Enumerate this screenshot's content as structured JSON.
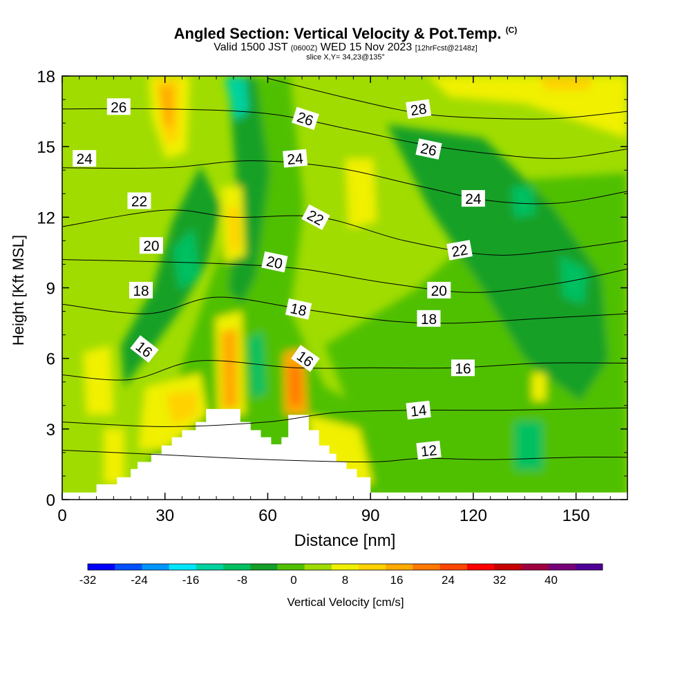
{
  "header": {
    "title": "Angled Section: Vertical Velocity & Pot.Temp.",
    "copyright": "(C)",
    "valid_prefix": "Valid 1500 JST",
    "valid_utc": "(0600Z)",
    "valid_date": "WED 15 Nov 2023",
    "forecast": "[12hrFcst@2148z]",
    "slice": "slice X,Y= 34,23@135°"
  },
  "chart_data": {
    "type": "heatmap",
    "xlabel": "Distance [nm]",
    "ylabel": "Height [Kft MSL]",
    "xlim": [
      0,
      165
    ],
    "ylim": [
      0,
      18
    ],
    "xticks": [
      0,
      30,
      60,
      90,
      120,
      150
    ],
    "yticks": [
      0,
      3,
      6,
      9,
      12,
      15,
      18
    ],
    "colorbar": {
      "label": "Vertical Velocity [cm/s]",
      "range": [
        -32,
        48
      ],
      "step": 4,
      "tick_labels": [
        "-32",
        "-24",
        "-16",
        "-8",
        "0",
        "8",
        "16",
        "24",
        "32",
        "40"
      ],
      "colors": [
        "#0000ff",
        "#0050ff",
        "#0096ff",
        "#00e6ff",
        "#00d2a0",
        "#00c060",
        "#14a028",
        "#50c000",
        "#a0dc00",
        "#f0f000",
        "#ffd200",
        "#ffaa00",
        "#ff7800",
        "#ff4600",
        "#ff0000",
        "#c80000",
        "#a00040",
        "#780078",
        "#500096"
      ]
    },
    "terrain": [
      [
        0,
        0.3
      ],
      [
        10,
        0.3
      ],
      [
        10,
        0.65
      ],
      [
        16,
        0.65
      ],
      [
        16,
        0.95
      ],
      [
        20,
        0.95
      ],
      [
        20,
        1.3
      ],
      [
        22,
        1.3
      ],
      [
        22,
        1.6
      ],
      [
        26,
        1.6
      ],
      [
        26,
        1.95
      ],
      [
        29,
        1.95
      ],
      [
        29,
        2.3
      ],
      [
        32,
        2.3
      ],
      [
        32,
        2.65
      ],
      [
        35,
        2.65
      ],
      [
        35,
        2.95
      ],
      [
        39,
        2.95
      ],
      [
        39,
        3.3
      ],
      [
        42,
        3.3
      ],
      [
        42,
        3.85
      ],
      [
        52,
        3.85
      ],
      [
        52,
        3.3
      ],
      [
        55,
        3.3
      ],
      [
        55,
        2.95
      ],
      [
        58,
        2.95
      ],
      [
        58,
        2.65
      ],
      [
        61,
        2.65
      ],
      [
        61,
        2.35
      ],
      [
        64,
        2.35
      ],
      [
        64,
        2.65
      ],
      [
        66,
        2.65
      ],
      [
        66,
        3.6
      ],
      [
        72,
        3.6
      ],
      [
        72,
        2.95
      ],
      [
        75,
        2.95
      ],
      [
        75,
        2.3
      ],
      [
        78,
        2.3
      ],
      [
        78,
        1.95
      ],
      [
        80,
        1.95
      ],
      [
        80,
        1.6
      ],
      [
        83,
        1.6
      ],
      [
        83,
        1.3
      ],
      [
        86,
        1.3
      ],
      [
        86,
        0.95
      ],
      [
        90,
        0.95
      ],
      [
        90,
        0.3
      ],
      [
        165,
        0.3
      ]
    ],
    "theta_contours": [
      {
        "value": 12,
        "points": [
          [
            0,
            2.1
          ],
          [
            30,
            1.9
          ],
          [
            60,
            1.7
          ],
          [
            90,
            1.6
          ],
          [
            105,
            1.75
          ],
          [
            125,
            1.7
          ],
          [
            150,
            1.8
          ],
          [
            165,
            1.8
          ]
        ]
      },
      {
        "value": 14,
        "points": [
          [
            0,
            3.3
          ],
          [
            30,
            3.1
          ],
          [
            60,
            3.3
          ],
          [
            80,
            3.7
          ],
          [
            105,
            3.8
          ],
          [
            130,
            3.8
          ],
          [
            165,
            3.9
          ]
        ]
      },
      {
        "value": 16,
        "points": [
          [
            0,
            5.3
          ],
          [
            20,
            5.1
          ],
          [
            40,
            5.9
          ],
          [
            68,
            5.6
          ],
          [
            90,
            5.6
          ],
          [
            115,
            5.6
          ],
          [
            140,
            5.8
          ],
          [
            165,
            5.8
          ]
        ]
      },
      {
        "value": 18,
        "points": [
          [
            0,
            8.3
          ],
          [
            25,
            7.9
          ],
          [
            45,
            8.6
          ],
          [
            70,
            8.1
          ],
          [
            95,
            7.6
          ],
          [
            115,
            7.5
          ],
          [
            140,
            7.7
          ],
          [
            165,
            7.9
          ]
        ]
      },
      {
        "value": 20,
        "points": [
          [
            0,
            10.2
          ],
          [
            30,
            10.1
          ],
          [
            50,
            10.0
          ],
          [
            70,
            9.8
          ],
          [
            95,
            9.2
          ],
          [
            120,
            8.8
          ],
          [
            145,
            9.2
          ],
          [
            165,
            9.8
          ]
        ]
      },
      {
        "value": 22,
        "points": [
          [
            0,
            11.6
          ],
          [
            30,
            12.3
          ],
          [
            50,
            12.0
          ],
          [
            75,
            12.0
          ],
          [
            100,
            11.0
          ],
          [
            125,
            10.4
          ],
          [
            145,
            10.6
          ],
          [
            165,
            11.0
          ]
        ]
      },
      {
        "value": 24,
        "points": [
          [
            0,
            14.1
          ],
          [
            30,
            14.1
          ],
          [
            55,
            14.4
          ],
          [
            80,
            14.1
          ],
          [
            105,
            13.3
          ],
          [
            125,
            12.7
          ],
          [
            145,
            12.6
          ],
          [
            165,
            13.1
          ]
        ]
      },
      {
        "value": 26,
        "points": [
          [
            0,
            16.6
          ],
          [
            30,
            16.6
          ],
          [
            60,
            16.4
          ],
          [
            85,
            15.7
          ],
          [
            105,
            15.1
          ],
          [
            125,
            14.7
          ],
          [
            145,
            14.5
          ],
          [
            165,
            14.9
          ]
        ]
      },
      {
        "value": 28,
        "points": [
          [
            60,
            17.9
          ],
          [
            85,
            17.0
          ],
          [
            105,
            16.4
          ],
          [
            125,
            16.2
          ],
          [
            145,
            16.2
          ],
          [
            165,
            16.5
          ]
        ]
      }
    ],
    "contour_labels": [
      {
        "text": "26",
        "x": 16.5,
        "y": 16.7,
        "rot": 0
      },
      {
        "text": "24",
        "x": 6.5,
        "y": 14.5,
        "rot": 0
      },
      {
        "text": "22",
        "x": 22.5,
        "y": 12.7,
        "rot": 0
      },
      {
        "text": "20",
        "x": 26,
        "y": 10.8,
        "rot": 0
      },
      {
        "text": "18",
        "x": 23,
        "y": 8.9,
        "rot": 0
      },
      {
        "text": "16",
        "x": 24,
        "y": 6.4,
        "rot": 38
      },
      {
        "text": "26",
        "x": 71,
        "y": 16.2,
        "rot": 18
      },
      {
        "text": "24",
        "x": 68,
        "y": 14.5,
        "rot": -5
      },
      {
        "text": "22",
        "x": 74,
        "y": 12.0,
        "rot": 28
      },
      {
        "text": "20",
        "x": 62,
        "y": 10.1,
        "rot": 12
      },
      {
        "text": "18",
        "x": 69,
        "y": 8.1,
        "rot": 12
      },
      {
        "text": "16",
        "x": 71,
        "y": 6.0,
        "rot": 35
      },
      {
        "text": "28",
        "x": 104,
        "y": 16.6,
        "rot": -8
      },
      {
        "text": "26",
        "x": 107,
        "y": 14.9,
        "rot": 12
      },
      {
        "text": "24",
        "x": 120,
        "y": 12.8,
        "rot": 0
      },
      {
        "text": "22",
        "x": 116,
        "y": 10.6,
        "rot": -10
      },
      {
        "text": "20",
        "x": 110,
        "y": 8.9,
        "rot": 0
      },
      {
        "text": "18",
        "x": 107,
        "y": 7.7,
        "rot": 0
      },
      {
        "text": "16",
        "x": 117,
        "y": 5.6,
        "rot": 0
      },
      {
        "text": "14",
        "x": 104,
        "y": 3.8,
        "rot": -6
      },
      {
        "text": "12",
        "x": 107,
        "y": 2.1,
        "rot": -6
      }
    ]
  }
}
